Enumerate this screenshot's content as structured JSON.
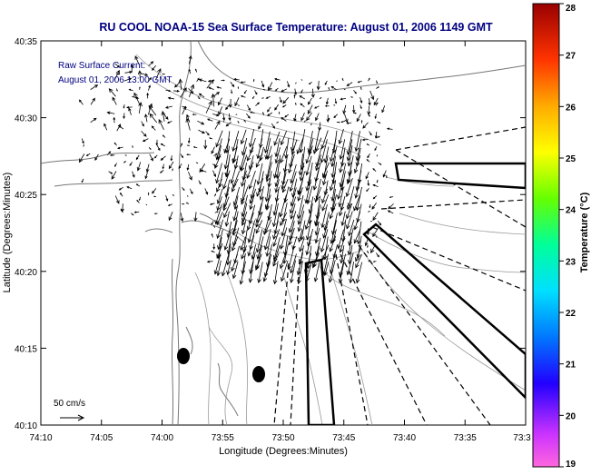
{
  "title": "RU COOL  NOAA-15  Sea Surface Temperature:  August 01, 2006 1149 GMT",
  "annotation": {
    "line1": "Raw Surface Current:",
    "line2": "August 01, 2006 13:00 GMT"
  },
  "scale_label": "50 cm/s",
  "xlabel": "Longitude (Degrees:Minutes)",
  "ylabel": "Latitude (Degrees:Minutes)",
  "x_ticks": [
    "74:10",
    "74:05",
    "74:00",
    "73:55",
    "73:50",
    "73:45",
    "73:40",
    "73:35",
    "73:3"
  ],
  "y_ticks": [
    "40:35",
    "40:30",
    "40:25",
    "40:20",
    "40:15",
    "40:10"
  ],
  "colorbar": {
    "label": "Temperature (°C)",
    "ticks": [
      "28",
      "27",
      "26",
      "25",
      "24",
      "23",
      "22",
      "21",
      "20",
      "19"
    ],
    "range": [
      19,
      28
    ]
  },
  "colors": {
    "title": "#000080",
    "annotation": "#000080",
    "land": "#ffffff",
    "contour": "#999999",
    "vector": "#000000"
  }
}
